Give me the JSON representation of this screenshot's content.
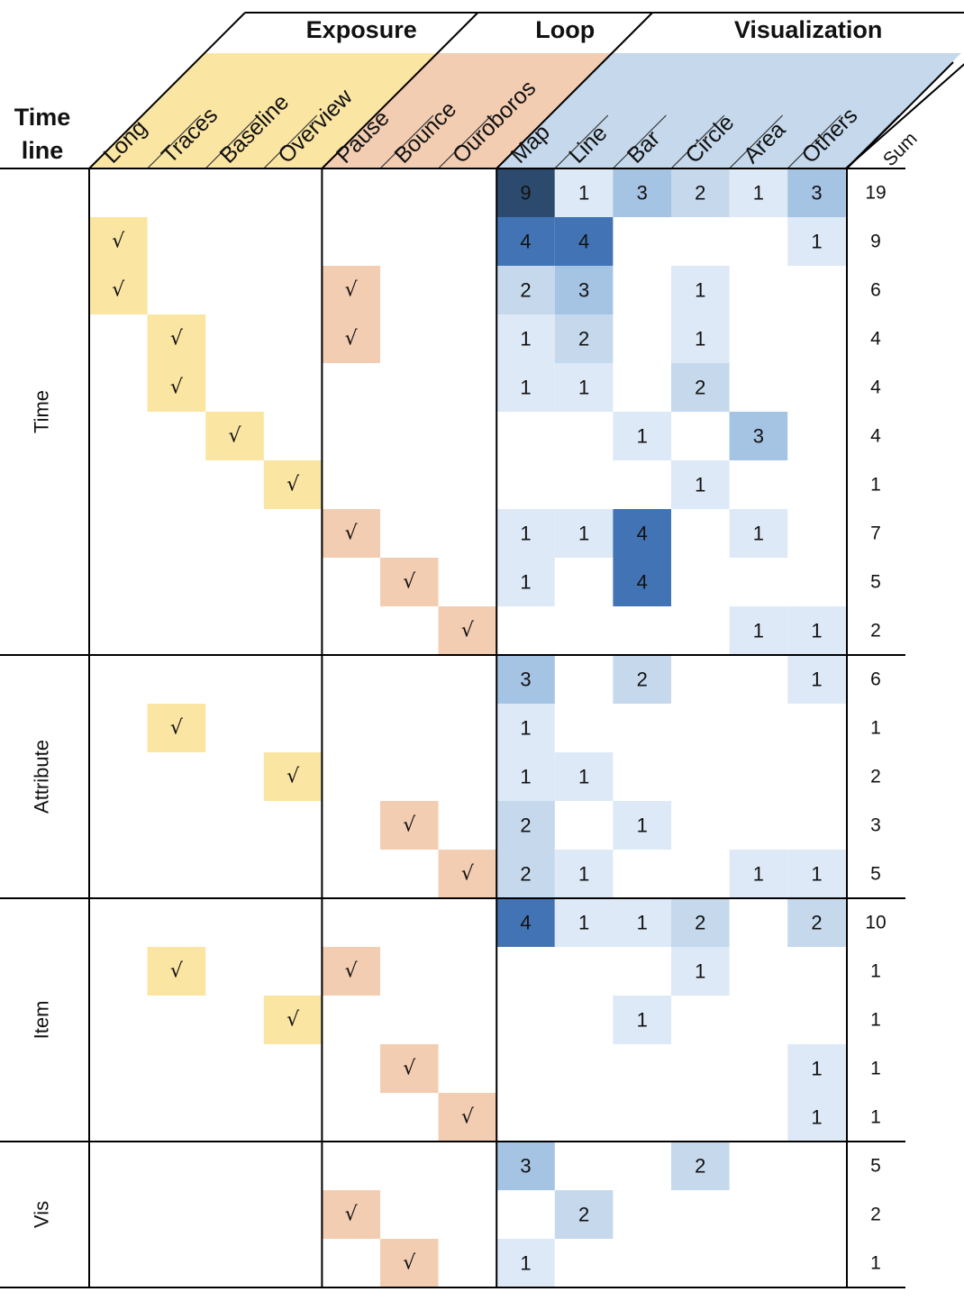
{
  "chart_data": {
    "type": "heatmap",
    "timeline_label": [
      "Time",
      "line"
    ],
    "groups": [
      {
        "name": "Exposure",
        "color": "#fbe5a3",
        "columns": [
          "Long",
          "Traces",
          "Baseline",
          "Overview"
        ]
      },
      {
        "name": "Loop",
        "color": "#f3cdb2",
        "columns": [
          "Pause",
          "Bounce",
          "Ouroboros"
        ]
      },
      {
        "name": "Visualization",
        "color": "#c5d8ec",
        "columns": [
          "Map",
          "Line",
          "Bar",
          "Circle",
          "Area",
          "Others"
        ]
      }
    ],
    "sum_label": "Sum",
    "check_mark": "√",
    "row_groups": [
      {
        "name": "Time",
        "rows": [
          {
            "checks": [],
            "vis": [
              9,
              1,
              3,
              2,
              1,
              3
            ],
            "sum": 19
          },
          {
            "checks": [
              "Long"
            ],
            "vis": [
              4,
              4,
              null,
              null,
              null,
              1
            ],
            "sum": 9
          },
          {
            "checks": [
              "Long",
              "Pause"
            ],
            "vis": [
              2,
              3,
              null,
              1,
              null,
              null
            ],
            "sum": 6
          },
          {
            "checks": [
              "Traces",
              "Pause"
            ],
            "vis": [
              1,
              2,
              null,
              1,
              null,
              null
            ],
            "sum": 4
          },
          {
            "checks": [
              "Traces"
            ],
            "vis": [
              1,
              1,
              null,
              2,
              null,
              null
            ],
            "sum": 4
          },
          {
            "checks": [
              "Baseline"
            ],
            "vis": [
              null,
              null,
              1,
              null,
              3,
              null
            ],
            "sum": 4
          },
          {
            "checks": [
              "Overview"
            ],
            "vis": [
              null,
              null,
              null,
              1,
              null,
              null
            ],
            "sum": 1
          },
          {
            "checks": [
              "Pause"
            ],
            "vis": [
              1,
              1,
              4,
              null,
              1,
              null
            ],
            "sum": 7
          },
          {
            "checks": [
              "Bounce"
            ],
            "vis": [
              1,
              null,
              4,
              null,
              null,
              null
            ],
            "sum": 5
          },
          {
            "checks": [
              "Ouroboros"
            ],
            "vis": [
              null,
              null,
              null,
              null,
              1,
              1
            ],
            "sum": 2
          }
        ]
      },
      {
        "name": "Attribute",
        "rows": [
          {
            "checks": [],
            "vis": [
              3,
              null,
              2,
              null,
              null,
              1
            ],
            "sum": 6
          },
          {
            "checks": [
              "Traces"
            ],
            "vis": [
              1,
              null,
              null,
              null,
              null,
              null
            ],
            "sum": 1
          },
          {
            "checks": [
              "Overview"
            ],
            "vis": [
              1,
              1,
              null,
              null,
              null,
              null
            ],
            "sum": 2
          },
          {
            "checks": [
              "Bounce"
            ],
            "vis": [
              2,
              null,
              1,
              null,
              null,
              null
            ],
            "sum": 3
          },
          {
            "checks": [
              "Ouroboros"
            ],
            "vis": [
              2,
              1,
              null,
              null,
              1,
              1
            ],
            "sum": 5
          }
        ]
      },
      {
        "name": "Item",
        "rows": [
          {
            "checks": [],
            "vis": [
              4,
              1,
              1,
              2,
              null,
              2
            ],
            "sum": 10
          },
          {
            "checks": [
              "Traces",
              "Pause"
            ],
            "vis": [
              null,
              null,
              null,
              1,
              null,
              null
            ],
            "sum": 1
          },
          {
            "checks": [
              "Overview"
            ],
            "vis": [
              null,
              null,
              1,
              null,
              null,
              null
            ],
            "sum": 1
          },
          {
            "checks": [
              "Bounce"
            ],
            "vis": [
              null,
              null,
              null,
              null,
              null,
              1
            ],
            "sum": 1
          },
          {
            "checks": [
              "Ouroboros"
            ],
            "vis": [
              null,
              null,
              null,
              null,
              null,
              1
            ],
            "sum": 1
          }
        ]
      },
      {
        "name": "Vis",
        "rows": [
          {
            "checks": [],
            "vis": [
              3,
              null,
              null,
              2,
              null,
              null
            ],
            "sum": 5
          },
          {
            "checks": [
              "Pause"
            ],
            "vis": [
              null,
              2,
              null,
              null,
              null,
              null
            ],
            "sum": 2
          },
          {
            "checks": [
              "Bounce"
            ],
            "vis": [
              1,
              null,
              null,
              null,
              null,
              null
            ],
            "sum": 1
          }
        ]
      }
    ],
    "heat_colors": {
      "1": "#dde9f6",
      "2": "#c5d8ec",
      "3": "#a5c3e3",
      "4": "#4274b5",
      "9": "#2c4a6d"
    }
  }
}
